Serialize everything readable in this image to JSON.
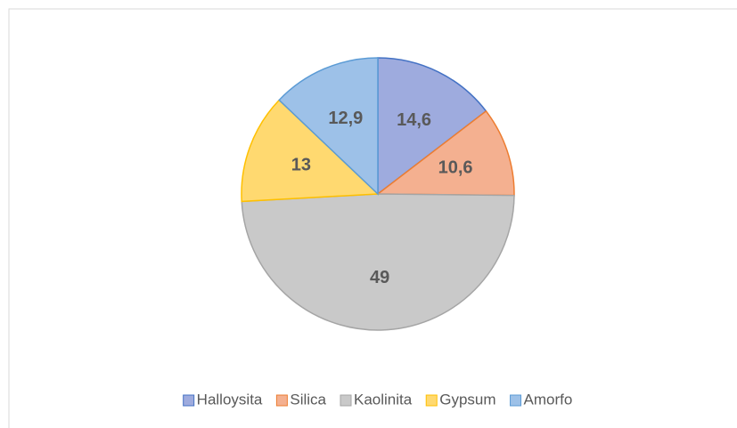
{
  "chart_data": {
    "type": "pie",
    "categories": [
      "Halloysita",
      "Silica",
      "Kaolinita",
      "Gypsum",
      "Amorfo"
    ],
    "values": [
      14.6,
      10.6,
      49,
      13,
      12.9
    ],
    "value_labels": [
      "14,6",
      "10,6",
      "49",
      "13",
      "12,9"
    ],
    "colors": [
      "#9eabde",
      "#f4b090",
      "#c9c9c9",
      "#ffd970",
      "#9dc1e8"
    ],
    "edgecolors": [
      "#4472c4",
      "#ed7d31",
      "#a5a5a5",
      "#ffc000",
      "#5b9bd5"
    ],
    "legend": "bottom"
  }
}
